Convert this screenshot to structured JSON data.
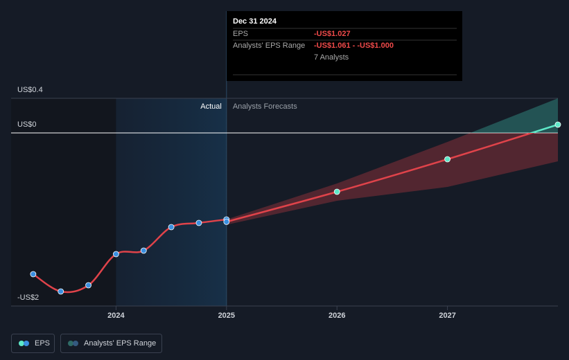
{
  "chart_data": {
    "type": "line",
    "xlim": [
      2023.05,
      2028
    ],
    "xticks": [
      2024,
      2025,
      2026,
      2027
    ],
    "ylim": [
      -2,
      0.4
    ],
    "yticks": [
      {
        "value": -2,
        "label": "-US$2"
      },
      {
        "value": 0,
        "label": "US$0"
      },
      {
        "value": 0.4,
        "label": "US$0.4"
      }
    ],
    "region_labels": [
      "Actual",
      "Analysts Forecasts"
    ],
    "series": [
      {
        "name": "EPS",
        "color": "#e0434a",
        "marker_color": "#3b8fe0",
        "x": [
          2023.25,
          2023.5,
          2023.75,
          2024,
          2024.25,
          2024.5,
          2024.75,
          2025
        ],
        "values": [
          -1.632,
          -1.832,
          -1.76,
          -1.4,
          -1.36,
          -1.088,
          -1.04,
          -1.0
        ]
      }
    ],
    "forecast": {
      "color": "#e0434a",
      "positive_color": "#5ee8c8",
      "x": [
        2025,
        2026,
        2027,
        2028
      ],
      "values": [
        -1.027,
        -0.68,
        -0.304,
        0.096
      ]
    },
    "range": {
      "name": "Analysts' EPS Range",
      "x": [
        2025,
        2026,
        2027,
        2028
      ],
      "low": [
        -1.061,
        -0.784,
        -0.624,
        -0.328
      ],
      "high": [
        -1.0,
        -0.584,
        -0.104,
        0.4
      ]
    },
    "tooltip": {
      "date": "Dec 31 2024",
      "eps_label": "EPS",
      "eps_value": "-US$1.027",
      "range_label": "Analysts' EPS Range",
      "range_value": "-US$1.061 - -US$1.000",
      "analysts": "7 Analysts"
    }
  }
}
